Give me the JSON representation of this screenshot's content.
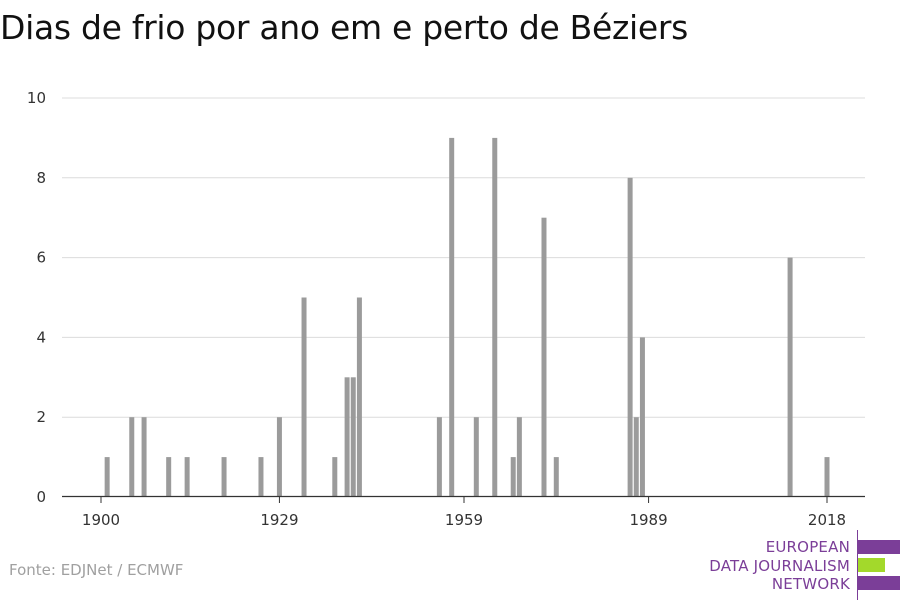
{
  "chart_data": {
    "type": "bar",
    "title": "Dias de frio por ano em e perto de Béziers",
    "xlim": [
      1900,
      2018
    ],
    "ylim": [
      0,
      10
    ],
    "y_ticks": [
      0,
      2,
      4,
      6,
      8,
      10
    ],
    "x_ticks": [
      1900,
      1929,
      1959,
      1989,
      2018
    ],
    "grid": true,
    "bar_color": "#9b9b9b",
    "x": [
      1901,
      1905,
      1907,
      1911,
      1914,
      1920,
      1926,
      1929,
      1933,
      1938,
      1940,
      1941,
      1942,
      1955,
      1957,
      1961,
      1964,
      1967,
      1968,
      1972,
      1974,
      1986,
      1987,
      1988,
      2012,
      2018
    ],
    "values": [
      1,
      2,
      2,
      1,
      1,
      1,
      1,
      2,
      5,
      1,
      3,
      3,
      5,
      2,
      9,
      2,
      9,
      1,
      2,
      7,
      1,
      8,
      2,
      4,
      6,
      1
    ]
  },
  "source": "Fonte: EDJNet / ECMWF",
  "logo": {
    "line1": "EUROPEAN",
    "line2": "DATA JOURNALISM",
    "line3": "NETWORK",
    "purple": "#7b3e98",
    "green": "#a3d92b"
  }
}
